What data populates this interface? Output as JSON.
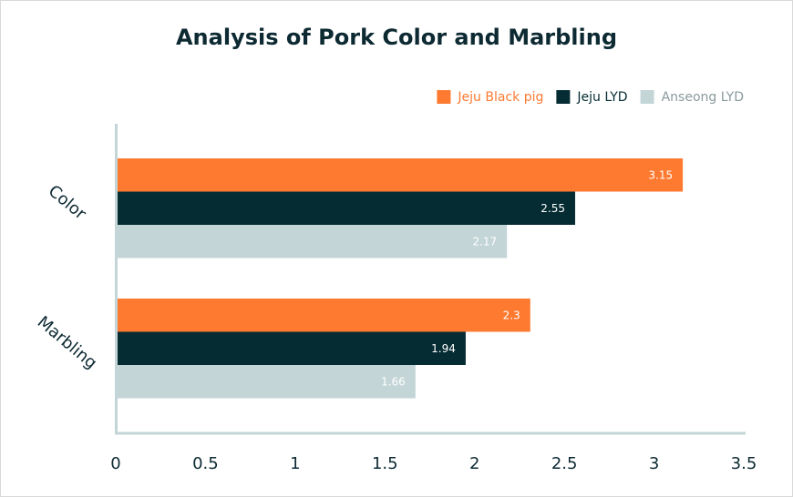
{
  "chart_data": {
    "type": "bar",
    "orientation": "horizontal",
    "title": "Analysis of Pork Color and Marbling",
    "categories": [
      "Color",
      "Marbling"
    ],
    "series": [
      {
        "name": "Jeju Black pig",
        "color": "#fe7a31",
        "legend_text_color": "#fe7a31",
        "values": [
          3.15,
          2.3
        ]
      },
      {
        "name": "Jeju LYD",
        "color": "#052c33",
        "legend_text_color": "#052c33",
        "values": [
          2.55,
          1.94
        ]
      },
      {
        "name": "Anseong LYD",
        "color": "#c3d5d6",
        "legend_text_color": "#8a9a9c",
        "values": [
          2.17,
          1.66
        ]
      }
    ],
    "xlim": [
      0,
      3.5
    ],
    "xticks": [
      "0",
      "0.5",
      "1",
      "1.5",
      "2",
      "2.5",
      "3",
      "3.5"
    ],
    "xlabel": "",
    "ylabel": "",
    "legend_position": "top-right",
    "grid": false,
    "axis_color": "#c3d5d6"
  }
}
